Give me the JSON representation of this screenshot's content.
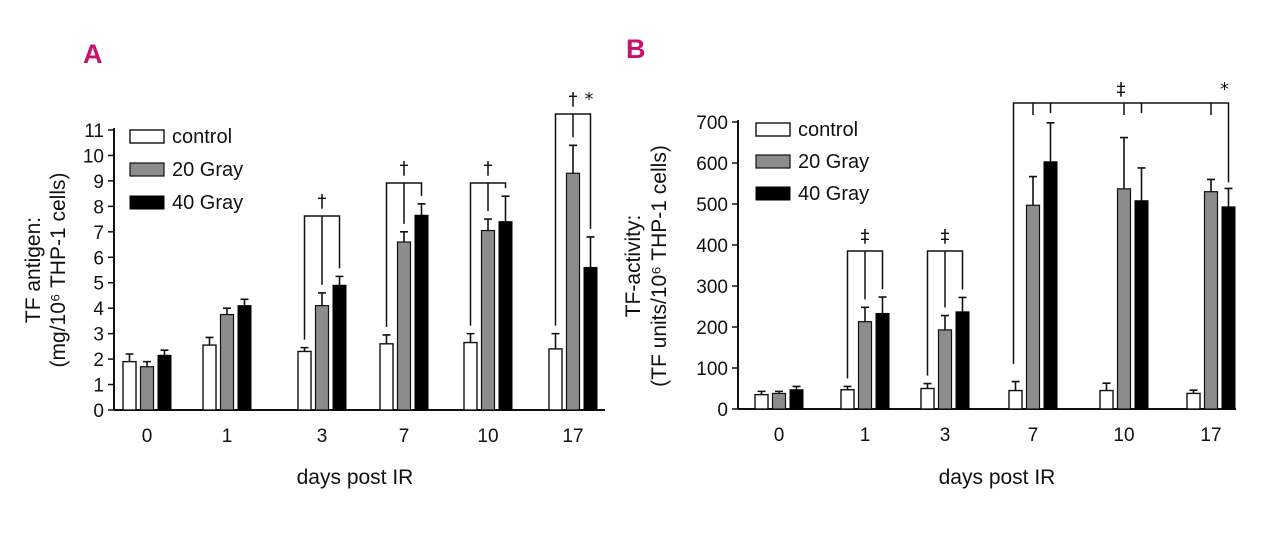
{
  "chart_data": [
    {
      "panel": "A",
      "type": "bar",
      "ylabel": [
        "TF antigen:",
        "(mg/10⁶ THP-1 cells)"
      ],
      "xlabel": "days post IR",
      "categories": [
        "0",
        "1",
        "3",
        "7",
        "10",
        "17"
      ],
      "ylim": [
        0,
        11
      ],
      "yticks": [
        "0",
        "1",
        "2",
        "3",
        "4",
        "5",
        "6",
        "7",
        "8",
        "9",
        "10",
        "11"
      ],
      "series": [
        {
          "name": "control",
          "values": [
            1.9,
            2.55,
            2.3,
            2.6,
            2.65,
            2.4
          ],
          "errors": [
            0.3,
            0.3,
            0.15,
            0.35,
            0.35,
            0.6
          ]
        },
        {
          "name": "20 Gray",
          "values": [
            1.7,
            3.75,
            4.1,
            6.6,
            7.05,
            9.3
          ],
          "errors": [
            0.2,
            0.25,
            0.5,
            0.4,
            0.45,
            1.1
          ]
        },
        {
          "name": "40 Gray",
          "values": [
            2.15,
            4.1,
            4.9,
            7.65,
            7.4,
            5.6
          ],
          "errors": [
            0.2,
            0.25,
            0.35,
            0.45,
            1.0,
            1.2
          ]
        }
      ],
      "significance": [
        {
          "category": "3",
          "symbol": "†",
          "targets": [
            0,
            1,
            2
          ]
        },
        {
          "category": "7",
          "symbol": "†",
          "targets": [
            0,
            1,
            2
          ]
        },
        {
          "category": "10",
          "symbol": "†",
          "targets": [
            0,
            1,
            2
          ]
        },
        {
          "category": "17",
          "symbol": "†",
          "targets": [
            0,
            1,
            2
          ],
          "extra": "*"
        }
      ]
    },
    {
      "panel": "B",
      "type": "bar",
      "ylabel": [
        "TF-activity:",
        "(TF units/10⁶ THP-1 cells)"
      ],
      "xlabel": "days post IR",
      "categories": [
        "0",
        "1",
        "3",
        "7",
        "10",
        "17"
      ],
      "ylim": [
        0,
        700
      ],
      "yticks": [
        "0",
        "100",
        "200",
        "300",
        "400",
        "500",
        "600",
        "700"
      ],
      "series": [
        {
          "name": "control",
          "values": [
            35,
            47,
            50,
            45,
            45,
            38
          ],
          "errors": [
            8,
            8,
            12,
            22,
            18,
            8
          ]
        },
        {
          "name": "20 Gray",
          "values": [
            38,
            213,
            193,
            497,
            537,
            530
          ],
          "errors": [
            5,
            35,
            35,
            70,
            125,
            30
          ]
        },
        {
          "name": "40 Gray",
          "values": [
            47,
            233,
            237,
            603,
            508,
            493
          ],
          "errors": [
            8,
            40,
            35,
            95,
            80,
            45
          ]
        }
      ],
      "significance": [
        {
          "category": "1",
          "symbol": "‡",
          "targets": [
            0,
            1,
            2
          ]
        },
        {
          "category": "3",
          "symbol": "‡",
          "targets": [
            0,
            1,
            2
          ]
        },
        {
          "span": [
            "7",
            "17"
          ],
          "symbol": "‡",
          "extra": "*"
        }
      ]
    }
  ],
  "legend": [
    "control",
    "20 Gray",
    "40 Gray"
  ]
}
